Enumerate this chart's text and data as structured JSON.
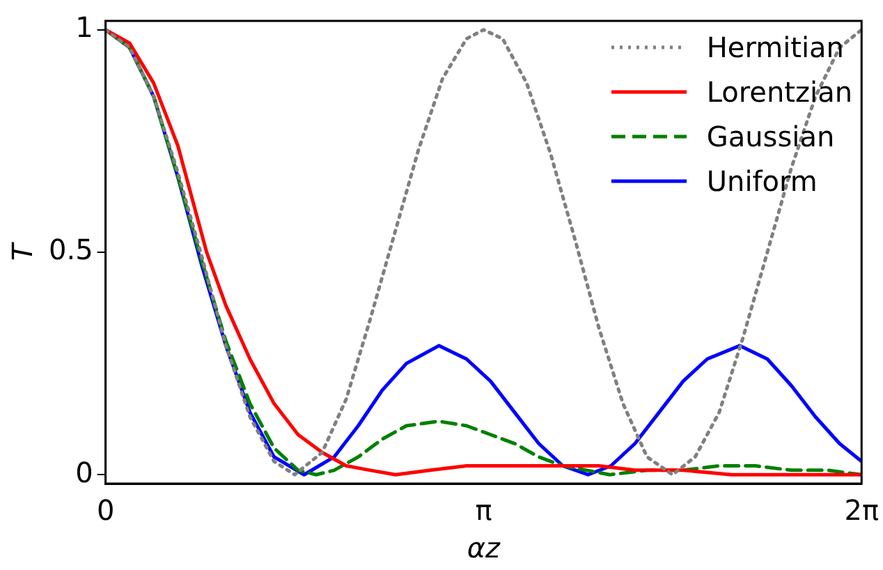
{
  "chart_data": {
    "type": "line",
    "xlabel": "αz",
    "ylabel": "T",
    "xlim": [
      0,
      6.28319
    ],
    "xticks": [
      0,
      {
        "value": 3.14159,
        "label": "π"
      },
      {
        "value": 6.28319,
        "label": "2π"
      }
    ],
    "ylim": [
      -0.02,
      1.02
    ],
    "yticks": [
      0,
      0.5,
      1
    ],
    "grid": false,
    "legend": "top right",
    "marker": "none",
    "series": [
      {
        "name": "Hermitian",
        "color": "#808080",
        "line_style": "dotted",
        "x": [
          0,
          0.2,
          0.4,
          0.6,
          0.8,
          1.0,
          1.2,
          1.4,
          1.571,
          1.8,
          2.0,
          2.2,
          2.4,
          2.6,
          2.8,
          3.0,
          3.142,
          3.3,
          3.5,
          3.7,
          3.9,
          4.1,
          4.3,
          4.5,
          4.712,
          4.9,
          5.1,
          5.3,
          5.5,
          5.7,
          5.9,
          6.1,
          6.283
        ],
        "values": [
          1,
          0.96,
          0.85,
          0.68,
          0.49,
          0.29,
          0.13,
          0.03,
          0,
          0.05,
          0.17,
          0.35,
          0.54,
          0.73,
          0.89,
          0.98,
          1,
          0.98,
          0.88,
          0.72,
          0.53,
          0.33,
          0.16,
          0.04,
          0,
          0.04,
          0.14,
          0.31,
          0.5,
          0.69,
          0.85,
          0.96,
          1
        ]
      },
      {
        "name": "Lorentzian",
        "color": "#ff0000",
        "line_style": "solid",
        "x": [
          0,
          0.2,
          0.4,
          0.6,
          0.84,
          1.0,
          1.2,
          1.4,
          1.6,
          1.8,
          2.0,
          2.2,
          2.41,
          2.7,
          3.0,
          3.3,
          3.55,
          3.8,
          4.1,
          4.4,
          4.8,
          5.2,
          5.8,
          6.283
        ],
        "values": [
          1,
          0.97,
          0.88,
          0.74,
          0.5,
          0.38,
          0.26,
          0.16,
          0.09,
          0.05,
          0.02,
          0.01,
          0,
          0.01,
          0.02,
          0.02,
          0.02,
          0.02,
          0.02,
          0.01,
          0.01,
          0,
          0,
          0
        ]
      },
      {
        "name": "Gaussian",
        "color": "#008000",
        "line_style": "dashed",
        "x": [
          0,
          0.2,
          0.4,
          0.6,
          0.8,
          1.0,
          1.2,
          1.4,
          1.6,
          1.75,
          1.9,
          2.1,
          2.3,
          2.5,
          2.77,
          3.0,
          3.2,
          3.4,
          3.6,
          3.8,
          4.0,
          4.19,
          4.5,
          4.8,
          5.1,
          5.4,
          5.7,
          6.0,
          6.283
        ],
        "values": [
          1,
          0.96,
          0.85,
          0.67,
          0.48,
          0.3,
          0.16,
          0.06,
          0.01,
          0,
          0.01,
          0.04,
          0.08,
          0.11,
          0.12,
          0.11,
          0.09,
          0.07,
          0.04,
          0.02,
          0.01,
          0,
          0.01,
          0.01,
          0.02,
          0.02,
          0.01,
          0.01,
          0
        ]
      },
      {
        "name": "Uniform",
        "color": "#0000ff",
        "line_style": "solid",
        "x": [
          0,
          0.2,
          0.4,
          0.6,
          0.8,
          1.0,
          1.2,
          1.4,
          1.65,
          1.9,
          2.1,
          2.3,
          2.5,
          2.77,
          3.0,
          3.2,
          3.4,
          3.6,
          3.8,
          4.01,
          4.2,
          4.4,
          4.6,
          4.8,
          5.0,
          5.27,
          5.5,
          5.7,
          5.9,
          6.1,
          6.283
        ],
        "values": [
          1,
          0.96,
          0.85,
          0.67,
          0.47,
          0.29,
          0.14,
          0.04,
          0,
          0.04,
          0.11,
          0.19,
          0.25,
          0.29,
          0.26,
          0.21,
          0.14,
          0.07,
          0.02,
          0,
          0.02,
          0.07,
          0.14,
          0.21,
          0.26,
          0.29,
          0.26,
          0.2,
          0.13,
          0.07,
          0.03
        ]
      }
    ]
  }
}
